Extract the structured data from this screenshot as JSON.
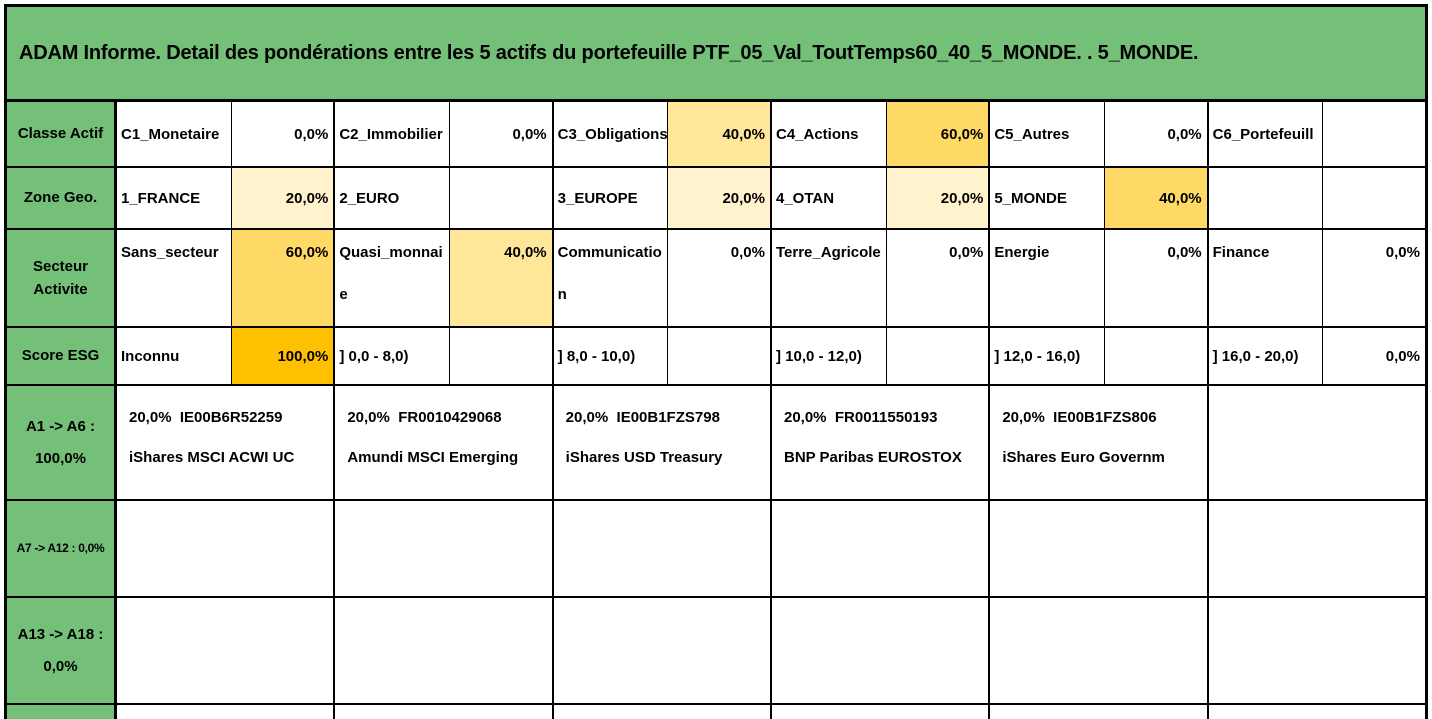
{
  "title": "ADAM Informe. Detail des pondérations entre les 5 actifs du portefeuille PTF_05_Val_ToutTemps60_40_5_MONDE. . 5_MONDE.",
  "colors": {
    "green": "#74C078",
    "light": "#FFF2CC",
    "mid": "#FFE699",
    "strong": "#FFD966",
    "orange": "#FFC000"
  },
  "grid": {
    "rows": [
      {
        "label": "Classe Actif",
        "cells": [
          {
            "name": "C1_Monetaire",
            "value": "0,0%"
          },
          {
            "name": "C2_Immobilier",
            "value": "0,0%"
          },
          {
            "name": "C3_Obligations",
            "value": "40,0%",
            "hl": "mid"
          },
          {
            "name": "C4_Actions",
            "value": "60,0%",
            "hl": "strong"
          },
          {
            "name": "C5_Autres",
            "value": "0,0%"
          },
          {
            "name": "C6_Portefeuill",
            "value": ""
          }
        ]
      },
      {
        "label": "Zone Geo.",
        "cells": [
          {
            "name": "1_FRANCE",
            "value": "20,0%",
            "hl": "light"
          },
          {
            "name": "2_EURO",
            "value": ""
          },
          {
            "name": "3_EUROPE",
            "value": "20,0%",
            "hl": "light"
          },
          {
            "name": "4_OTAN",
            "value": "20,0%",
            "hl": "light"
          },
          {
            "name": "5_MONDE",
            "value": "40,0%",
            "hl": "strong"
          },
          {
            "name": "",
            "value": ""
          }
        ]
      },
      {
        "label": "Secteur Activite",
        "cells": [
          {
            "name": "Sans_secteur",
            "value": "60,0%",
            "hl": "strong"
          },
          {
            "name": "Quasi_monnaie",
            "value": "40,0%",
            "hl": "mid"
          },
          {
            "name": "Communication",
            "value": "0,0%"
          },
          {
            "name": "Terre_Agricole",
            "value": "0,0%"
          },
          {
            "name": "Energie",
            "value": "0,0%"
          },
          {
            "name": "Finance",
            "value": "0,0%"
          }
        ]
      },
      {
        "label": "Score ESG",
        "cells": [
          {
            "name": "Inconnu",
            "value": "100,0%",
            "hl": "orange"
          },
          {
            "name": "] 0,0 - 8,0)",
            "value": ""
          },
          {
            "name": "] 8,0 - 10,0)",
            "value": ""
          },
          {
            "name": "] 10,0 - 12,0)",
            "value": ""
          },
          {
            "name": "] 12,0 - 16,0)",
            "value": ""
          },
          {
            "name": "] 16,0 - 20,0)",
            "value": "0,0%"
          }
        ]
      }
    ],
    "asset_rows": [
      {
        "label": "A1 -> A6 : 100,0%",
        "cells": [
          {
            "line1": "20,0%  IE00B6R52259",
            "line2": "iShares MSCI ACWI UC"
          },
          {
            "line1": "20,0%  FR0010429068",
            "line2": "Amundi MSCI Emerging"
          },
          {
            "line1": "20,0%  IE00B1FZS798",
            "line2": "iShares USD Treasury"
          },
          {
            "line1": "20,0%  FR0011550193",
            "line2": "BNP Paribas EUROSTOX"
          },
          {
            "line1": "20,0%  IE00B1FZS806",
            "line2": "iShares Euro Governm"
          },
          {
            "line1": "",
            "line2": ""
          }
        ]
      },
      {
        "label": "A7 -> A12 : 0,0%",
        "cells": [
          {
            "line1": "",
            "line2": ""
          },
          {
            "line1": "",
            "line2": ""
          },
          {
            "line1": "",
            "line2": ""
          },
          {
            "line1": "",
            "line2": ""
          },
          {
            "line1": "",
            "line2": ""
          },
          {
            "line1": "",
            "line2": ""
          }
        ]
      },
      {
        "label": "A13 -> A18 : 0,0%",
        "cells": [
          {
            "line1": "",
            "line2": ""
          },
          {
            "line1": "",
            "line2": ""
          },
          {
            "line1": "",
            "line2": ""
          },
          {
            "line1": "",
            "line2": ""
          },
          {
            "line1": "",
            "line2": ""
          },
          {
            "line1": "",
            "line2": ""
          }
        ]
      }
    ]
  }
}
